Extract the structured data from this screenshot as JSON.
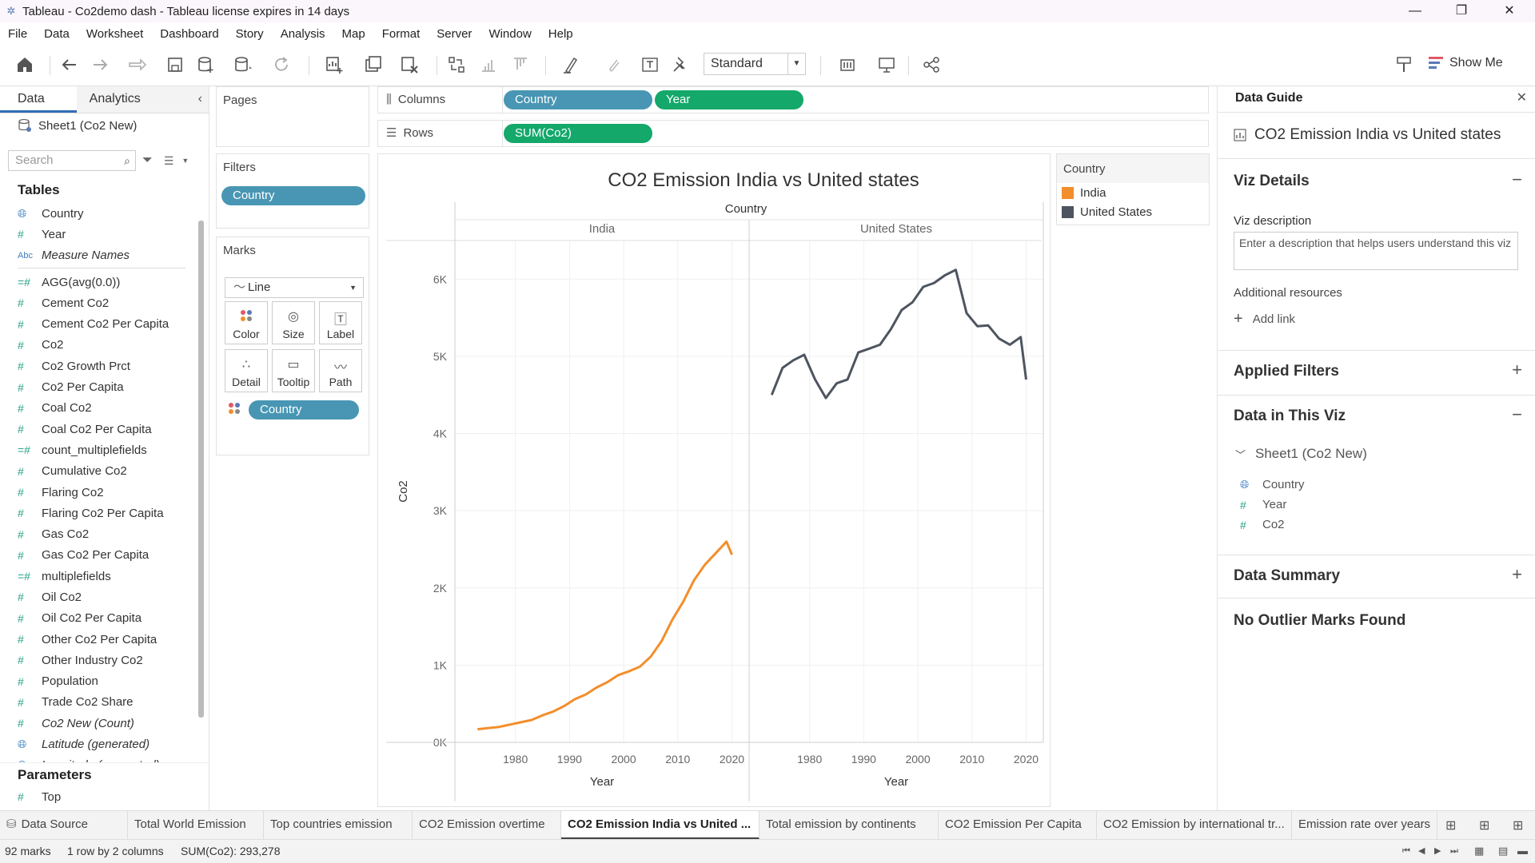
{
  "window": {
    "title": "Tableau - Co2demo dash - Tableau license expires in 14 days",
    "minimize_icon": "minimize-icon",
    "restore_icon": "restore-icon",
    "close_icon": "close-icon"
  },
  "menu": [
    "File",
    "Data",
    "Worksheet",
    "Dashboard",
    "Story",
    "Analysis",
    "Map",
    "Format",
    "Server",
    "Window",
    "Help"
  ],
  "toolbar": {
    "fit_value": "Standard",
    "show_me_label": "Show Me"
  },
  "left_panel": {
    "tabs": [
      "Data",
      "Analytics"
    ],
    "data_source": "Sheet1 (Co2 New)",
    "search_placeholder": "Search",
    "tables_title": "Tables",
    "fields": [
      {
        "icon": "globe",
        "label": "Country"
      },
      {
        "icon": "hash",
        "label": "Year"
      },
      {
        "icon": "abc",
        "label": "Measure Names",
        "italic": true
      },
      {
        "icon": "hash-calc",
        "label": "AGG(avg(0.0))"
      },
      {
        "icon": "hash",
        "label": "Cement Co2"
      },
      {
        "icon": "hash",
        "label": "Cement Co2 Per Capita"
      },
      {
        "icon": "hash",
        "label": "Co2"
      },
      {
        "icon": "hash",
        "label": "Co2 Growth Prct"
      },
      {
        "icon": "hash",
        "label": "Co2 Per Capita"
      },
      {
        "icon": "hash",
        "label": "Coal Co2"
      },
      {
        "icon": "hash",
        "label": "Coal Co2 Per Capita"
      },
      {
        "icon": "hash-calc",
        "label": "count_multiplefields"
      },
      {
        "icon": "hash",
        "label": "Cumulative Co2"
      },
      {
        "icon": "hash",
        "label": "Flaring Co2"
      },
      {
        "icon": "hash",
        "label": "Flaring Co2 Per Capita"
      },
      {
        "icon": "hash",
        "label": "Gas Co2"
      },
      {
        "icon": "hash",
        "label": "Gas Co2 Per Capita"
      },
      {
        "icon": "hash-calc",
        "label": "multiplefields"
      },
      {
        "icon": "hash",
        "label": "Oil Co2"
      },
      {
        "icon": "hash",
        "label": "Oil Co2 Per Capita"
      },
      {
        "icon": "hash",
        "label": "Other Co2 Per Capita"
      },
      {
        "icon": "hash",
        "label": "Other Industry Co2"
      },
      {
        "icon": "hash",
        "label": "Population"
      },
      {
        "icon": "hash",
        "label": "Trade Co2 Share"
      },
      {
        "icon": "hash",
        "label": "Co2 New (Count)",
        "italic": true
      },
      {
        "icon": "globe",
        "label": "Latitude (generated)",
        "italic": true
      },
      {
        "icon": "globe",
        "label": "Longitude (generated)",
        "italic": true
      }
    ],
    "parameters_title": "Parameters",
    "parameters": [
      {
        "icon": "hash",
        "label": "Top"
      }
    ]
  },
  "shelves": {
    "pages_title": "Pages",
    "filters_title": "Filters",
    "filter_pills": [
      "Country"
    ],
    "marks_title": "Marks",
    "mark_type": "Line",
    "mark_buttons": [
      {
        "label": "Color",
        "icon": "color-icon"
      },
      {
        "label": "Size",
        "icon": "size-icon"
      },
      {
        "label": "Label",
        "icon": "label-icon"
      },
      {
        "label": "Detail",
        "icon": "detail-icon"
      },
      {
        "label": "Tooltip",
        "icon": "tooltip-icon"
      },
      {
        "label": "Path",
        "icon": "path-icon"
      }
    ],
    "marks_pill": "Country",
    "columns_label": "Columns",
    "columns_pills": [
      "Country",
      "Year"
    ],
    "rows_label": "Rows",
    "rows_pills": [
      "SUM(Co2)"
    ]
  },
  "legend": {
    "title": "Country",
    "items": [
      {
        "label": "India",
        "color": "#f28e2b"
      },
      {
        "label": "United States",
        "color": "#4e5560"
      }
    ]
  },
  "chart_data": {
    "type": "line",
    "title": "CO2 Emission India vs United states",
    "column_header": "Country",
    "panes": [
      "India",
      "United States"
    ],
    "xlabel": "Year",
    "ylabel": "Co2",
    "xlim": [
      1970,
      2022
    ],
    "ylim": [
      0,
      6500
    ],
    "x_ticks": [
      "1980",
      "1990",
      "2000",
      "2010",
      "2020"
    ],
    "y_ticks": [
      "0K",
      "1K",
      "2K",
      "3K",
      "4K",
      "5K",
      "6K"
    ],
    "y_tick_values": [
      0,
      1000,
      2000,
      3000,
      4000,
      5000,
      6000
    ],
    "series": [
      {
        "name": "India",
        "color": "#f28e2b",
        "x": [
          1973,
          1975,
          1977,
          1979,
          1981,
          1983,
          1985,
          1987,
          1989,
          1991,
          1993,
          1995,
          1997,
          1999,
          2001,
          2003,
          2005,
          2007,
          2009,
          2011,
          2013,
          2015,
          2017,
          2019,
          2020
        ],
        "y": [
          170,
          185,
          200,
          230,
          260,
          290,
          350,
          400,
          470,
          560,
          620,
          710,
          780,
          870,
          920,
          980,
          1110,
          1310,
          1590,
          1820,
          2100,
          2300,
          2450,
          2600,
          2430
        ]
      },
      {
        "name": "United States",
        "color": "#4e5560",
        "x": [
          1973,
          1975,
          1977,
          1979,
          1981,
          1983,
          1985,
          1987,
          1989,
          1991,
          1993,
          1995,
          1997,
          1999,
          2001,
          2003,
          2005,
          2007,
          2009,
          2011,
          2013,
          2015,
          2017,
          2019,
          2020
        ],
        "y": [
          4500,
          4850,
          4950,
          5020,
          4700,
          4460,
          4650,
          4700,
          5050,
          5100,
          5150,
          5350,
          5600,
          5700,
          5900,
          5950,
          6050,
          6120,
          5560,
          5390,
          5400,
          5230,
          5150,
          5250,
          4700
        ]
      }
    ]
  },
  "data_guide": {
    "title": "Data Guide",
    "viz_name": "CO2 Emission India vs United states",
    "viz_details_title": "Viz Details",
    "viz_description_label": "Viz description",
    "viz_description_placeholder": "Enter a description that helps users understand this viz",
    "additional_resources": "Additional resources",
    "add_link": "Add link",
    "applied_filters": "Applied Filters",
    "data_in_viz": "Data in This Viz",
    "data_source": "Sheet1 (Co2 New)",
    "fields": [
      {
        "icon": "globe",
        "label": "Country"
      },
      {
        "icon": "hash",
        "label": "Year"
      },
      {
        "icon": "hash",
        "label": "Co2"
      }
    ],
    "data_summary": "Data Summary",
    "outliers": "No Outlier Marks Found"
  },
  "sheet_tabs": [
    "Data Source",
    "Total World Emission",
    "Top countries emission",
    "CO2 Emission overtime",
    "CO2 Emission India vs United ...",
    "Total emission by continents",
    "CO2 Emission Per Capita",
    "CO2 Emission by international tr...",
    "Emission rate over years"
  ],
  "active_tab_index": 4,
  "status": {
    "marks": "92 marks",
    "dims": "1 row by 2 columns",
    "sum": "SUM(Co2): 293,278"
  }
}
